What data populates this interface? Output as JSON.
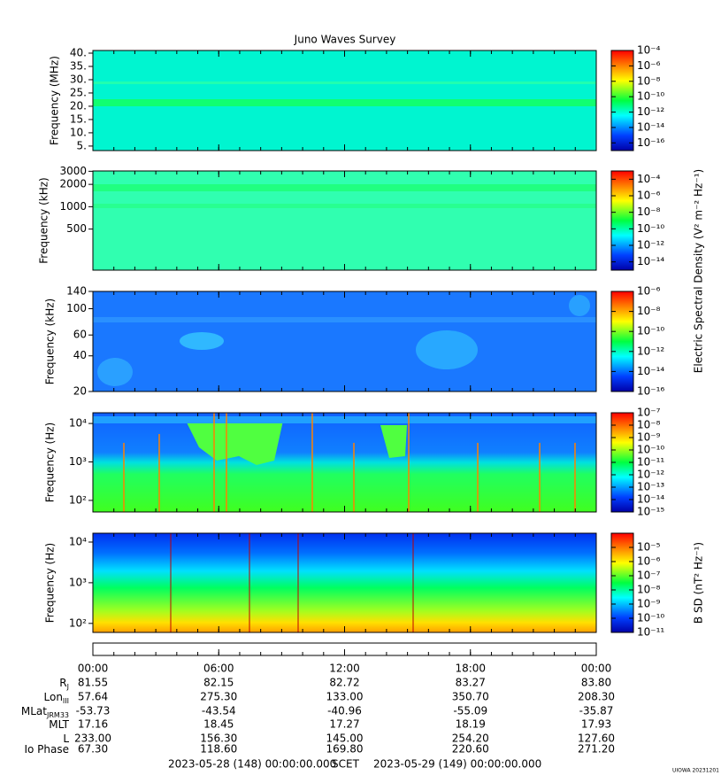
{
  "chart_data": [
    {
      "type": "spectrogram",
      "title": "Juno Waves Survey",
      "ylabel": "Frequency (MHz)",
      "log_y": false,
      "ylim": [
        3.3,
        41
      ],
      "yticks": [
        {
          "value": 5,
          "label": "5."
        },
        {
          "value": 10,
          "label": "10."
        },
        {
          "value": 15,
          "label": "15."
        },
        {
          "value": 20,
          "label": "20."
        },
        {
          "value": 25,
          "label": "25."
        },
        {
          "value": 30,
          "label": "30."
        },
        {
          "value": 35,
          "label": "35."
        },
        {
          "value": 40,
          "label": "40."
        }
      ],
      "clim": [
        1e-17,
        0.0001
      ],
      "cticks": [
        {
          "value": 0.0001,
          "label": "10⁻⁴"
        },
        {
          "value": 1e-06,
          "label": "10⁻⁶"
        },
        {
          "value": 1e-08,
          "label": "10⁻⁸"
        },
        {
          "value": 1e-10,
          "label": "10⁻¹⁰"
        },
        {
          "value": 1e-12,
          "label": "10⁻¹²"
        },
        {
          "value": 1e-14,
          "label": "10⁻¹⁴"
        },
        {
          "value": 1e-16,
          "label": "10⁻¹⁶"
        }
      ]
    },
    {
      "type": "spectrogram",
      "ylabel": "Frequency (kHz)",
      "log_y": true,
      "ylim": [
        140,
        3030
      ],
      "yticks": [
        500,
        1000,
        2000,
        3000
      ],
      "clim": [
        1e-15,
        0.001
      ],
      "cticks": [
        {
          "value": 0.0001,
          "label": "10⁻⁴"
        },
        {
          "value": 1e-06,
          "label": "10⁻⁶"
        },
        {
          "value": 1e-08,
          "label": "10⁻⁸"
        },
        {
          "value": 1e-10,
          "label": "10⁻¹⁰"
        },
        {
          "value": 1e-12,
          "label": "10⁻¹²"
        },
        {
          "value": 1e-14,
          "label": "10⁻¹⁴"
        }
      ],
      "colorbar_label": "Electric Spectral Density (V² m⁻² Hz⁻¹)"
    },
    {
      "type": "spectrogram",
      "ylabel": "Frequency (kHz)",
      "log_y": true,
      "ylim": [
        20,
        140
      ],
      "yticks": [
        20,
        40,
        60,
        100,
        140
      ],
      "clim": [
        1e-16,
        1e-06
      ],
      "cticks": [
        {
          "value": 1e-06,
          "label": "10⁻⁶"
        },
        {
          "value": 1e-08,
          "label": "10⁻⁸"
        },
        {
          "value": 1e-10,
          "label": "10⁻¹⁰"
        },
        {
          "value": 1e-12,
          "label": "10⁻¹²"
        },
        {
          "value": 1e-14,
          "label": "10⁻¹⁴"
        },
        {
          "value": 1e-16,
          "label": "10⁻¹⁶"
        }
      ]
    },
    {
      "type": "spectrogram",
      "ylabel": "Frequency (Hz)",
      "log_y": true,
      "ylim": [
        50,
        19000
      ],
      "yticks": [
        {
          "value": 100,
          "label": "10²"
        },
        {
          "value": 1000,
          "label": "10³"
        },
        {
          "value": 10000,
          "label": "10⁴"
        }
      ],
      "clim": [
        1e-15,
        1e-07
      ],
      "cticks": [
        {
          "value": 1e-07,
          "label": "10⁻⁷"
        },
        {
          "value": 1e-08,
          "label": "10⁻⁸"
        },
        {
          "value": 1e-09,
          "label": "10⁻⁹"
        },
        {
          "value": 1e-10,
          "label": "10⁻¹⁰"
        },
        {
          "value": 1e-11,
          "label": "10⁻¹¹"
        },
        {
          "value": 1e-12,
          "label": "10⁻¹²"
        },
        {
          "value": 1e-13,
          "label": "10⁻¹³"
        },
        {
          "value": 1e-14,
          "label": "10⁻¹⁴"
        },
        {
          "value": 1e-15,
          "label": "10⁻¹⁵"
        }
      ]
    },
    {
      "type": "spectrogram",
      "ylabel": "Frequency (Hz)",
      "log_y": true,
      "ylim": [
        60,
        16500
      ],
      "yticks": [
        {
          "value": 100,
          "label": "10²"
        },
        {
          "value": 1000,
          "label": "10³"
        },
        {
          "value": 10000,
          "label": "10⁴"
        }
      ],
      "clim": [
        1e-11,
        0.0001
      ],
      "cticks": [
        {
          "value": 1e-05,
          "label": "10⁻⁵"
        },
        {
          "value": 1e-06,
          "label": "10⁻⁶"
        },
        {
          "value": 1e-07,
          "label": "10⁻⁷"
        },
        {
          "value": 1e-08,
          "label": "10⁻⁸"
        },
        {
          "value": 1e-09,
          "label": "10⁻⁹"
        },
        {
          "value": 1e-10,
          "label": "10⁻¹⁰"
        },
        {
          "value": 1e-11,
          "label": "10⁻¹¹"
        }
      ],
      "colorbar_label": "B SD (nT² Hz⁻¹)"
    }
  ],
  "ephemeris": {
    "xlim": [
      0,
      24
    ],
    "xticks": [
      {
        "value": 0,
        "label": "00:00"
      },
      {
        "value": 6,
        "label": "06:00"
      },
      {
        "value": 12,
        "label": "12:00"
      },
      {
        "value": 18,
        "label": "18:00"
      },
      {
        "value": 24,
        "label": "00:00"
      }
    ],
    "rows": [
      {
        "label": "R",
        "sub": "J",
        "values": [
          "81.55",
          "82.15",
          "82.72",
          "83.27",
          "83.80"
        ]
      },
      {
        "label": "Lon",
        "sub": "III",
        "values": [
          "57.64",
          "275.30",
          "133.00",
          "350.70",
          "208.30"
        ]
      },
      {
        "label": "MLat",
        "sub": "JRM33",
        "values": [
          "-53.73",
          "-43.54",
          "-40.96",
          "-55.09",
          "-35.87"
        ]
      },
      {
        "label": "MLT",
        "values": [
          "17.16",
          "18.45",
          "17.27",
          "18.19",
          "17.93"
        ]
      },
      {
        "label": "L",
        "values": [
          "233.00",
          "156.30",
          "145.00",
          "254.20",
          "127.60"
        ]
      },
      {
        "label": "Io Phase",
        "values": [
          "67.30",
          "118.60",
          "169.80",
          "220.60",
          "271.20"
        ]
      }
    ],
    "start": "2023-05-28 (148) 00:00:00.000",
    "scet": "SCET",
    "end": "2023-05-29 (149) 00:00:00.000"
  },
  "credit": "UIOWA 20231201"
}
